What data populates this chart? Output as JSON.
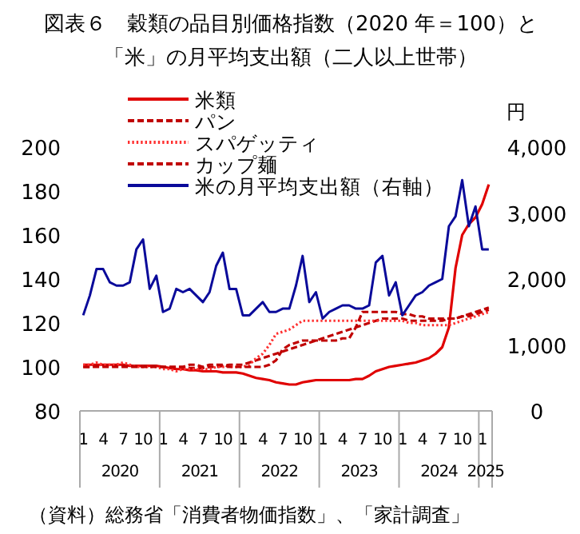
{
  "chart_data": {
    "type": "line",
    "title": "図表６　穀類の品目別価格指数（2020 年＝100）と「米」の月平均支出額（二人以上世帯）",
    "categories": [
      "1",
      null,
      null,
      "4",
      null,
      null,
      "7",
      null,
      null,
      "10",
      null,
      null,
      "1",
      null,
      null,
      "4",
      null,
      null,
      "7",
      null,
      null,
      "10",
      null,
      null,
      "1",
      null,
      null,
      "4",
      null,
      null,
      "7",
      null,
      null,
      "10",
      null,
      null,
      "1",
      null,
      null,
      "4",
      null,
      null,
      "7",
      null,
      null,
      "10",
      null,
      null,
      "1",
      null,
      null,
      "4",
      null,
      null,
      "7",
      null,
      null,
      "10",
      null,
      null,
      "1",
      null
    ],
    "series": [
      {
        "name": "米類",
        "color": "#e00000",
        "line_style": "solid",
        "values": [
          101,
          101,
          101,
          101,
          101,
          101,
          101,
          100.5,
          100.5,
          100.5,
          100.5,
          100.5,
          100,
          99.5,
          99,
          99,
          98.5,
          98.5,
          98,
          98,
          98,
          97.5,
          97.5,
          97.5,
          97,
          96,
          95,
          94.5,
          94,
          93,
          92.5,
          92,
          92,
          93,
          93.5,
          94,
          94,
          94,
          94,
          94,
          94,
          94.5,
          94.5,
          96,
          98,
          99,
          100,
          100.5,
          101,
          101.5,
          102,
          103,
          104,
          106,
          109,
          118,
          145,
          160,
          165,
          168,
          174,
          183
        ]
      },
      {
        "name": "パン",
        "color": "#c00000",
        "line_style": "dashed",
        "values": [
          100,
          100,
          100.5,
          100.5,
          100.5,
          100.5,
          100.5,
          100.5,
          100.5,
          100.5,
          100.5,
          100.5,
          100,
          100,
          100,
          100,
          99.5,
          99.5,
          99.5,
          100,
          100,
          100.5,
          101,
          101,
          101,
          102,
          103,
          104,
          105,
          106,
          107,
          108,
          109,
          110,
          111,
          112,
          113,
          114,
          115,
          116,
          117,
          118,
          119,
          120,
          121,
          122,
          122,
          122,
          122,
          121,
          121,
          121,
          121,
          121,
          121,
          122,
          122,
          123,
          123,
          124,
          125,
          126
        ]
      },
      {
        "name": "スパゲッティ",
        "color": "#ff3030",
        "line_style": "dotted",
        "values": [
          101,
          101,
          102,
          101,
          101,
          101,
          102,
          101,
          100,
          100,
          100,
          100,
          99,
          99,
          98,
          99,
          99,
          99,
          99,
          99,
          100,
          100,
          100,
          100,
          100,
          101,
          104,
          106,
          110,
          115,
          116,
          117,
          119,
          121,
          121,
          121,
          121,
          121,
          121,
          121,
          121,
          121,
          121,
          121,
          121,
          121,
          121,
          121,
          121,
          120,
          120,
          119,
          119,
          119,
          119,
          119,
          120,
          121,
          122,
          123,
          124,
          125
        ]
      },
      {
        "name": "カップ麺",
        "color": "#c00000",
        "line_style": "dashed",
        "values": [
          100,
          100,
          100,
          100,
          100,
          100,
          100,
          100,
          100,
          100,
          100,
          100,
          100,
          100,
          100,
          100,
          101,
          101,
          100,
          101,
          101,
          101,
          100,
          100,
          100,
          100,
          100,
          100,
          101,
          103,
          108,
          110,
          111,
          112,
          112,
          112,
          112,
          112,
          112,
          113,
          113,
          118,
          125,
          125,
          125,
          125,
          125,
          125,
          124,
          124,
          123,
          123,
          122,
          122,
          122,
          122,
          122,
          123,
          124,
          125,
          126,
          127
        ]
      },
      {
        "name": "米の月平均支出額（右軸）",
        "color": "#0a0a9a",
        "line_style": "solid",
        "axis": "y2",
        "values": [
          1450,
          1750,
          2150,
          2150,
          1950,
          1900,
          1900,
          1950,
          2450,
          2600,
          1850,
          2050,
          1500,
          1550,
          1850,
          1800,
          1850,
          1750,
          1650,
          1800,
          2200,
          2400,
          1850,
          1850,
          1450,
          1450,
          1550,
          1650,
          1500,
          1500,
          1550,
          1550,
          1900,
          2350,
          1650,
          1800,
          1400,
          1500,
          1550,
          1600,
          1600,
          1550,
          1550,
          1600,
          2250,
          2350,
          1750,
          1950,
          1450,
          1600,
          1750,
          1800,
          1900,
          1950,
          2000,
          2800,
          2950,
          3500,
          2800,
          3100,
          2450,
          2450
        ]
      }
    ],
    "ylim": [
      80,
      200
    ],
    "yticks": [
      80,
      100,
      120,
      140,
      160,
      180,
      200
    ],
    "y2lim": [
      0,
      4000
    ],
    "y2ticks": [
      0,
      {
        "value": 1000,
        "label": "1,000"
      },
      {
        "value": 2000,
        "label": "2,000"
      },
      {
        "value": 3000,
        "label": "3,000"
      },
      {
        "value": 4000,
        "label": "4,000"
      }
    ],
    "y2label": "円",
    "legend": "top",
    "grid": false,
    "annotations": [
      "2020",
      "2021",
      "2022",
      "2023",
      "2024",
      "2025",
      "（資料）総務省「消費者物価指数」、「家計調査」"
    ]
  }
}
